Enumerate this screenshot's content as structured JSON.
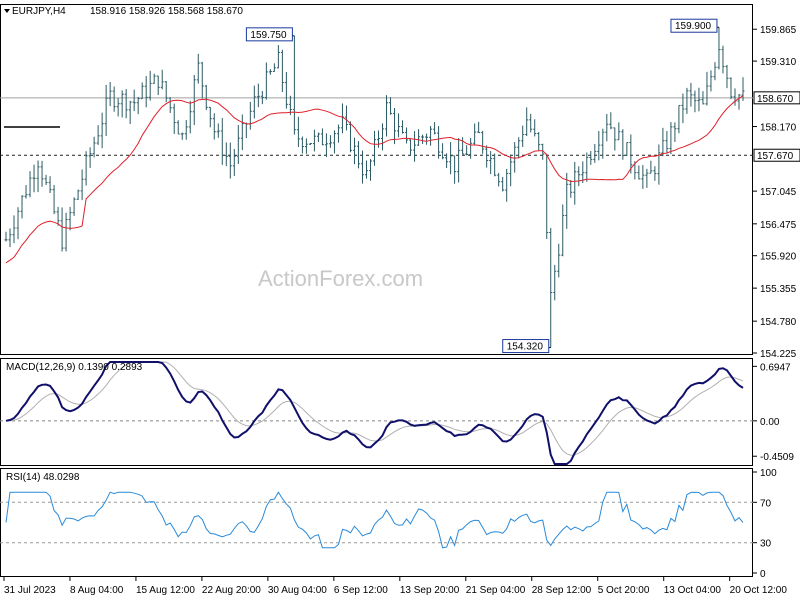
{
  "chart_data": [
    {
      "type": "ohlc",
      "title": "EURJPY,H4",
      "ohlc_header": [
        "158.916",
        "158.926",
        "158.568",
        "158.670"
      ],
      "watermark": "ActionForex.com",
      "ylim": [
        154.225,
        160.2
      ],
      "y_ticks": [
        "159.865",
        "159.310",
        "158.170",
        "157.045",
        "156.475",
        "155.920",
        "155.355",
        "154.780",
        "154.225"
      ],
      "price_tags": [
        "158.670",
        "157.670"
      ],
      "annotations": [
        "159.750",
        "159.900",
        "154.320"
      ],
      "ma_line": {
        "color": "#e0202a"
      },
      "bar_color": "#2b5a62",
      "reference_lines": [
        158.67,
        157.67
      ]
    },
    {
      "type": "line",
      "title": "MACD(12,26,9) 0.1390 0.2893",
      "ylim": [
        -0.55,
        0.75
      ],
      "y_ticks": [
        "0.6947",
        "0.00",
        "-0.4509"
      ],
      "series": [
        {
          "color": "#10106a"
        },
        {
          "color": "#b0b0b0"
        }
      ]
    },
    {
      "type": "line",
      "title": "RSI(14) 48.0298",
      "ylim": [
        0,
        100
      ],
      "y_ticks": [
        "100",
        "70",
        "30",
        "0"
      ],
      "levels": [
        70,
        30
      ],
      "series": [
        {
          "color": "#2a8ad8"
        }
      ]
    }
  ],
  "x_axis": {
    "labels": [
      "31 Jul 2023",
      "8 Aug 04:00",
      "15 Aug 12:00",
      "22 Aug 20:00",
      "30 Aug 04:00",
      "6 Sep 12:00",
      "13 Sep 20:00",
      "21 Sep 04:00",
      "28 Sep 12:00",
      "5 Oct 20:00",
      "13 Oct 04:00",
      "20 Oct 12:00"
    ]
  }
}
